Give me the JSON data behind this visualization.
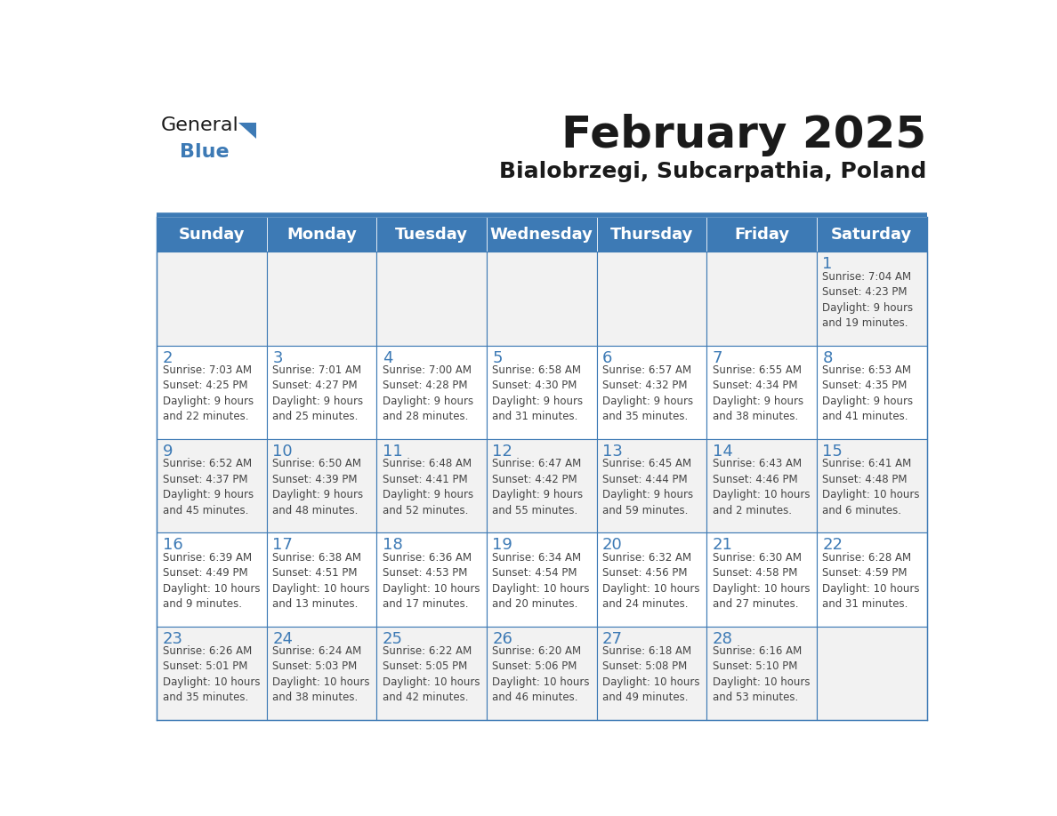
{
  "title": "February 2025",
  "subtitle": "Bialobrzegi, Subcarpathia, Poland",
  "header_bg": "#3d7ab5",
  "header_text_color": "#ffffff",
  "day_number_color": "#3d7ab5",
  "info_text_color": "#444444",
  "border_color": "#3d7ab5",
  "days_of_week": [
    "Sunday",
    "Monday",
    "Tuesday",
    "Wednesday",
    "Thursday",
    "Friday",
    "Saturday"
  ],
  "weeks": [
    [
      {
        "day": null,
        "info": null
      },
      {
        "day": null,
        "info": null
      },
      {
        "day": null,
        "info": null
      },
      {
        "day": null,
        "info": null
      },
      {
        "day": null,
        "info": null
      },
      {
        "day": null,
        "info": null
      },
      {
        "day": 1,
        "info": "Sunrise: 7:04 AM\nSunset: 4:23 PM\nDaylight: 9 hours\nand 19 minutes."
      }
    ],
    [
      {
        "day": 2,
        "info": "Sunrise: 7:03 AM\nSunset: 4:25 PM\nDaylight: 9 hours\nand 22 minutes."
      },
      {
        "day": 3,
        "info": "Sunrise: 7:01 AM\nSunset: 4:27 PM\nDaylight: 9 hours\nand 25 minutes."
      },
      {
        "day": 4,
        "info": "Sunrise: 7:00 AM\nSunset: 4:28 PM\nDaylight: 9 hours\nand 28 minutes."
      },
      {
        "day": 5,
        "info": "Sunrise: 6:58 AM\nSunset: 4:30 PM\nDaylight: 9 hours\nand 31 minutes."
      },
      {
        "day": 6,
        "info": "Sunrise: 6:57 AM\nSunset: 4:32 PM\nDaylight: 9 hours\nand 35 minutes."
      },
      {
        "day": 7,
        "info": "Sunrise: 6:55 AM\nSunset: 4:34 PM\nDaylight: 9 hours\nand 38 minutes."
      },
      {
        "day": 8,
        "info": "Sunrise: 6:53 AM\nSunset: 4:35 PM\nDaylight: 9 hours\nand 41 minutes."
      }
    ],
    [
      {
        "day": 9,
        "info": "Sunrise: 6:52 AM\nSunset: 4:37 PM\nDaylight: 9 hours\nand 45 minutes."
      },
      {
        "day": 10,
        "info": "Sunrise: 6:50 AM\nSunset: 4:39 PM\nDaylight: 9 hours\nand 48 minutes."
      },
      {
        "day": 11,
        "info": "Sunrise: 6:48 AM\nSunset: 4:41 PM\nDaylight: 9 hours\nand 52 minutes."
      },
      {
        "day": 12,
        "info": "Sunrise: 6:47 AM\nSunset: 4:42 PM\nDaylight: 9 hours\nand 55 minutes."
      },
      {
        "day": 13,
        "info": "Sunrise: 6:45 AM\nSunset: 4:44 PM\nDaylight: 9 hours\nand 59 minutes."
      },
      {
        "day": 14,
        "info": "Sunrise: 6:43 AM\nSunset: 4:46 PM\nDaylight: 10 hours\nand 2 minutes."
      },
      {
        "day": 15,
        "info": "Sunrise: 6:41 AM\nSunset: 4:48 PM\nDaylight: 10 hours\nand 6 minutes."
      }
    ],
    [
      {
        "day": 16,
        "info": "Sunrise: 6:39 AM\nSunset: 4:49 PM\nDaylight: 10 hours\nand 9 minutes."
      },
      {
        "day": 17,
        "info": "Sunrise: 6:38 AM\nSunset: 4:51 PM\nDaylight: 10 hours\nand 13 minutes."
      },
      {
        "day": 18,
        "info": "Sunrise: 6:36 AM\nSunset: 4:53 PM\nDaylight: 10 hours\nand 17 minutes."
      },
      {
        "day": 19,
        "info": "Sunrise: 6:34 AM\nSunset: 4:54 PM\nDaylight: 10 hours\nand 20 minutes."
      },
      {
        "day": 20,
        "info": "Sunrise: 6:32 AM\nSunset: 4:56 PM\nDaylight: 10 hours\nand 24 minutes."
      },
      {
        "day": 21,
        "info": "Sunrise: 6:30 AM\nSunset: 4:58 PM\nDaylight: 10 hours\nand 27 minutes."
      },
      {
        "day": 22,
        "info": "Sunrise: 6:28 AM\nSunset: 4:59 PM\nDaylight: 10 hours\nand 31 minutes."
      }
    ],
    [
      {
        "day": 23,
        "info": "Sunrise: 6:26 AM\nSunset: 5:01 PM\nDaylight: 10 hours\nand 35 minutes."
      },
      {
        "day": 24,
        "info": "Sunrise: 6:24 AM\nSunset: 5:03 PM\nDaylight: 10 hours\nand 38 minutes."
      },
      {
        "day": 25,
        "info": "Sunrise: 6:22 AM\nSunset: 5:05 PM\nDaylight: 10 hours\nand 42 minutes."
      },
      {
        "day": 26,
        "info": "Sunrise: 6:20 AM\nSunset: 5:06 PM\nDaylight: 10 hours\nand 46 minutes."
      },
      {
        "day": 27,
        "info": "Sunrise: 6:18 AM\nSunset: 5:08 PM\nDaylight: 10 hours\nand 49 minutes."
      },
      {
        "day": 28,
        "info": "Sunrise: 6:16 AM\nSunset: 5:10 PM\nDaylight: 10 hours\nand 53 minutes."
      },
      {
        "day": null,
        "info": null
      }
    ]
  ],
  "logo_general_color": "#1a1a1a",
  "logo_blue_color": "#3d7ab5",
  "title_fontsize": 36,
  "subtitle_fontsize": 18,
  "header_fontsize": 13,
  "day_number_fontsize": 13,
  "info_fontsize": 8.5
}
